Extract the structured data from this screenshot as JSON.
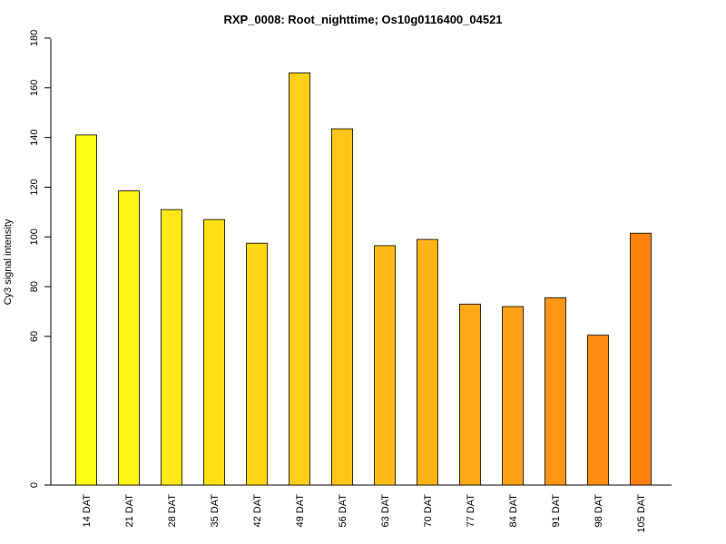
{
  "chart_data": {
    "type": "bar",
    "title": "RXP_0008: Root_nighttime; Os10g0116400_04521",
    "xlabel": "",
    "ylabel": "Cy3 signal intensity",
    "categories": [
      "14 DAT",
      "21 DAT",
      "28 DAT",
      "35 DAT",
      "42 DAT",
      "49 DAT",
      "56 DAT",
      "63 DAT",
      "70 DAT",
      "77 DAT",
      "84 DAT",
      "91 DAT",
      "98 DAT",
      "105 DAT"
    ],
    "values": [
      141,
      118.5,
      111,
      107,
      97.5,
      166,
      143.5,
      96.5,
      99,
      73,
      72,
      75.5,
      60.5,
      101.5
    ],
    "y_ticks": [
      "0",
      "60",
      "80",
      "100",
      "120",
      "140",
      "160",
      "180"
    ],
    "ylim": [
      0,
      180
    ],
    "y_scale": "piecewise: 0 to 60 shown compressed, 60 to 180 linear",
    "bar_colors": [
      "#FFFF14",
      "#FFF414",
      "#FFE817",
      "#FFE015",
      "#FFD716",
      "#FFCF17",
      "#FFC518",
      "#FFBC18",
      "#FFB317",
      "#FFA818",
      "#FFA017",
      "#FF9614",
      "#FF8D12",
      "#FF8210"
    ],
    "grid": false,
    "legend": "none"
  }
}
